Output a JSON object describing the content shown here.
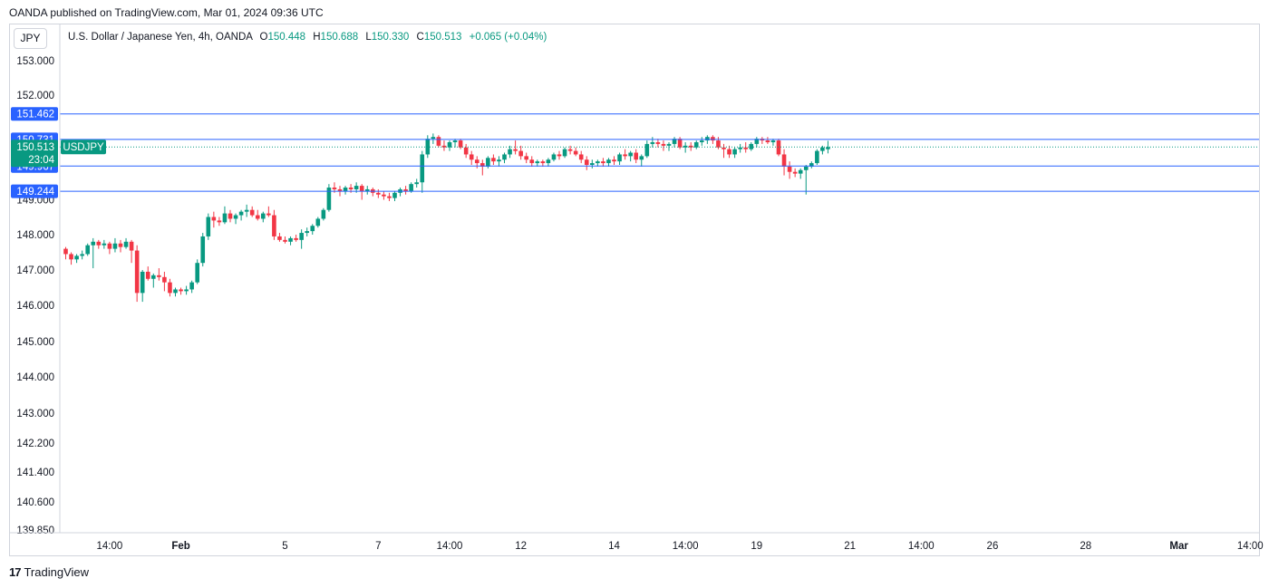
{
  "header": {
    "published": "OANDA published on TradingView.com, Mar 01, 2024 09:36 UTC",
    "currency": "JPY",
    "symbol_desc": "U.S. Dollar / Japanese Yen, 4h, OANDA",
    "o_label": "O",
    "o_value": "150.448",
    "h_label": "H",
    "h_value": "150.688",
    "l_label": "L",
    "l_value": "150.330",
    "c_label": "C",
    "c_value": "150.513",
    "change": "+0.065 (+0.04%)"
  },
  "footer": {
    "brand": "TradingView",
    "logo": "17"
  },
  "colors": {
    "up": "#089981",
    "down": "#f23645",
    "hline": "#2962ff",
    "label_blue": "#2962ff",
    "label_green": "#089981",
    "grid": "#f0f3fa"
  },
  "chart_data": {
    "type": "candlestick",
    "symbol": "USDJPY",
    "y_ticks": [
      {
        "v": 153.0,
        "t": "153.000"
      },
      {
        "v": 152.0,
        "t": "152.000"
      },
      {
        "v": 149.0,
        "t": "149.000"
      },
      {
        "v": 148.0,
        "t": "148.000"
      },
      {
        "v": 147.0,
        "t": "147.000"
      },
      {
        "v": 146.0,
        "t": "146.000"
      },
      {
        "v": 145.0,
        "t": "145.000"
      },
      {
        "v": 144.0,
        "t": "144.000"
      },
      {
        "v": 143.0,
        "t": "143.000"
      },
      {
        "v": 142.2,
        "t": "142.200"
      },
      {
        "v": 141.4,
        "t": "141.400"
      },
      {
        "v": 140.6,
        "t": "140.600"
      },
      {
        "v": 139.85,
        "t": "139.850"
      }
    ],
    "x_ticks": [
      {
        "i": 8,
        "t": "14:00"
      },
      {
        "i": 21,
        "t": "Feb"
      },
      {
        "i": 40,
        "t": "5"
      },
      {
        "i": 57,
        "t": "7"
      },
      {
        "i": 70,
        "t": "14:00"
      },
      {
        "i": 83,
        "t": "12"
      },
      {
        "i": 100,
        "t": "14"
      },
      {
        "i": 113,
        "t": "14:00"
      },
      {
        "i": 126,
        "t": "19"
      },
      {
        "i": 143,
        "t": "21"
      },
      {
        "i": 156,
        "t": "14:00"
      },
      {
        "i": 169,
        "t": "26"
      },
      {
        "i": 186,
        "t": "28"
      },
      {
        "i": 203,
        "t": "Mar"
      },
      {
        "i": 216,
        "t": "14:00"
      }
    ],
    "horizontal_lines": [
      {
        "price": 151.462,
        "label": "151.462"
      },
      {
        "price": 150.731,
        "label": "150.731"
      },
      {
        "price": 149.967,
        "label": "149.967"
      },
      {
        "price": 149.244,
        "label": "149.244"
      }
    ],
    "last_price": {
      "price": 150.513,
      "label": "150.513",
      "countdown": "23:04",
      "symbol_tag": "USDJPY"
    },
    "candles": [
      [
        147.6,
        147.65,
        147.3,
        147.45
      ],
      [
        147.45,
        147.5,
        147.15,
        147.3
      ],
      [
        147.3,
        147.45,
        147.2,
        147.4
      ],
      [
        147.4,
        147.55,
        147.3,
        147.45
      ],
      [
        147.45,
        147.75,
        147.4,
        147.7
      ],
      [
        147.7,
        147.9,
        147.05,
        147.8
      ],
      [
        147.8,
        147.85,
        147.6,
        147.7
      ],
      [
        147.7,
        147.85,
        147.6,
        147.75
      ],
      [
        147.75,
        147.8,
        147.45,
        147.6
      ],
      [
        147.6,
        147.9,
        147.5,
        147.75
      ],
      [
        147.75,
        147.85,
        147.5,
        147.65
      ],
      [
        147.65,
        147.9,
        147.6,
        147.8
      ],
      [
        147.8,
        147.85,
        147.2,
        147.55
      ],
      [
        147.55,
        147.7,
        146.1,
        146.35
      ],
      [
        146.35,
        147.0,
        146.1,
        146.95
      ],
      [
        146.95,
        147.1,
        146.7,
        146.75
      ],
      [
        146.75,
        146.9,
        146.5,
        146.85
      ],
      [
        146.85,
        147.05,
        146.7,
        146.8
      ],
      [
        146.8,
        146.95,
        146.4,
        146.65
      ],
      [
        146.65,
        146.75,
        146.25,
        146.35
      ],
      [
        146.35,
        146.5,
        146.25,
        146.45
      ],
      [
        146.45,
        146.5,
        146.3,
        146.4
      ],
      [
        146.4,
        146.55,
        146.3,
        146.45
      ],
      [
        146.45,
        146.7,
        146.35,
        146.65
      ],
      [
        146.65,
        147.3,
        146.6,
        147.2
      ],
      [
        147.2,
        148.05,
        147.1,
        147.95
      ],
      [
        147.95,
        148.6,
        147.85,
        148.5
      ],
      [
        148.5,
        148.65,
        148.2,
        148.4
      ],
      [
        148.4,
        148.5,
        148.25,
        148.35
      ],
      [
        148.35,
        148.8,
        148.3,
        148.6
      ],
      [
        148.6,
        148.7,
        148.35,
        148.45
      ],
      [
        148.45,
        148.6,
        148.3,
        148.55
      ],
      [
        148.55,
        148.7,
        148.4,
        148.65
      ],
      [
        148.65,
        148.85,
        148.5,
        148.7
      ],
      [
        148.7,
        148.8,
        148.5,
        148.55
      ],
      [
        148.55,
        148.7,
        148.4,
        148.45
      ],
      [
        148.45,
        148.65,
        148.35,
        148.6
      ],
      [
        148.6,
        148.8,
        148.5,
        148.55
      ],
      [
        148.55,
        148.7,
        147.85,
        147.95
      ],
      [
        147.95,
        148.05,
        147.8,
        147.85
      ],
      [
        147.85,
        147.95,
        147.75,
        147.8
      ],
      [
        147.8,
        147.95,
        147.7,
        147.9
      ],
      [
        147.9,
        148.0,
        147.8,
        147.85
      ],
      [
        147.85,
        148.15,
        147.6,
        148.05
      ],
      [
        148.05,
        148.2,
        147.95,
        148.1
      ],
      [
        148.1,
        148.3,
        148.0,
        148.25
      ],
      [
        148.25,
        148.5,
        148.2,
        148.45
      ],
      [
        148.45,
        148.75,
        148.4,
        148.7
      ],
      [
        148.7,
        149.45,
        148.65,
        149.35
      ],
      [
        149.35,
        149.5,
        149.2,
        149.3
      ],
      [
        149.3,
        149.4,
        149.1,
        149.25
      ],
      [
        149.25,
        149.4,
        149.15,
        149.35
      ],
      [
        149.35,
        149.45,
        149.2,
        149.3
      ],
      [
        149.3,
        149.5,
        149.2,
        149.4
      ],
      [
        149.4,
        149.45,
        149.0,
        149.25
      ],
      [
        149.25,
        149.4,
        149.15,
        149.3
      ],
      [
        149.3,
        149.35,
        149.1,
        149.2
      ],
      [
        149.2,
        149.3,
        149.05,
        149.15
      ],
      [
        149.15,
        149.25,
        149.0,
        149.1
      ],
      [
        149.1,
        149.2,
        148.95,
        149.05
      ],
      [
        149.05,
        149.25,
        148.95,
        149.2
      ],
      [
        149.2,
        149.35,
        149.1,
        149.3
      ],
      [
        149.3,
        149.4,
        149.15,
        149.25
      ],
      [
        149.25,
        149.5,
        149.2,
        149.45
      ],
      [
        149.45,
        149.6,
        149.35,
        149.5
      ],
      [
        149.5,
        150.4,
        149.2,
        150.3
      ],
      [
        150.3,
        150.85,
        150.2,
        150.75
      ],
      [
        150.75,
        150.9,
        150.6,
        150.8
      ],
      [
        150.8,
        150.85,
        150.5,
        150.55
      ],
      [
        150.55,
        150.7,
        150.4,
        150.5
      ],
      [
        150.5,
        150.7,
        150.4,
        150.65
      ],
      [
        150.65,
        150.75,
        150.5,
        150.7
      ],
      [
        150.7,
        150.75,
        150.45,
        150.5
      ],
      [
        150.5,
        150.6,
        150.2,
        150.3
      ],
      [
        150.3,
        150.4,
        150.0,
        150.15
      ],
      [
        150.15,
        150.25,
        149.9,
        150.05
      ],
      [
        150.05,
        150.15,
        149.7,
        149.95
      ],
      [
        149.95,
        150.25,
        149.9,
        150.2
      ],
      [
        150.2,
        150.3,
        150.0,
        150.1
      ],
      [
        150.1,
        150.25,
        149.95,
        150.15
      ],
      [
        150.15,
        150.35,
        150.05,
        150.3
      ],
      [
        150.3,
        150.55,
        150.2,
        150.45
      ],
      [
        150.45,
        150.7,
        150.3,
        150.4
      ],
      [
        150.4,
        150.55,
        150.15,
        150.25
      ],
      [
        150.25,
        150.35,
        150.05,
        150.15
      ],
      [
        150.15,
        150.25,
        149.95,
        150.05
      ],
      [
        150.05,
        150.15,
        149.95,
        150.1
      ],
      [
        150.1,
        150.15,
        149.95,
        150.05
      ],
      [
        150.05,
        150.2,
        149.95,
        150.15
      ],
      [
        150.15,
        150.35,
        150.1,
        150.3
      ],
      [
        150.3,
        150.4,
        150.15,
        150.25
      ],
      [
        150.25,
        150.5,
        150.2,
        150.45
      ],
      [
        150.45,
        150.55,
        150.3,
        150.4
      ],
      [
        150.4,
        150.5,
        150.25,
        150.3
      ],
      [
        150.3,
        150.4,
        150.05,
        150.15
      ],
      [
        150.15,
        150.25,
        149.85,
        150.0
      ],
      [
        150.0,
        150.15,
        149.9,
        150.05
      ],
      [
        150.05,
        150.15,
        149.95,
        150.1
      ],
      [
        150.1,
        150.2,
        149.95,
        150.05
      ],
      [
        150.05,
        150.2,
        149.95,
        150.15
      ],
      [
        150.15,
        150.25,
        150.0,
        150.1
      ],
      [
        150.1,
        150.35,
        150.0,
        150.3
      ],
      [
        150.3,
        150.45,
        150.15,
        150.25
      ],
      [
        150.25,
        150.4,
        150.1,
        150.35
      ],
      [
        150.35,
        150.45,
        150.05,
        150.15
      ],
      [
        150.15,
        150.3,
        149.95,
        150.25
      ],
      [
        150.25,
        150.7,
        150.2,
        150.6
      ],
      [
        150.6,
        150.8,
        150.5,
        150.65
      ],
      [
        150.65,
        150.75,
        150.5,
        150.6
      ],
      [
        150.6,
        150.7,
        150.4,
        150.55
      ],
      [
        150.55,
        150.65,
        150.4,
        150.6
      ],
      [
        150.6,
        150.8,
        150.5,
        150.75
      ],
      [
        150.75,
        150.8,
        150.45,
        150.5
      ],
      [
        150.5,
        150.65,
        150.35,
        150.55
      ],
      [
        150.55,
        150.65,
        150.4,
        150.5
      ],
      [
        150.5,
        150.7,
        150.45,
        150.65
      ],
      [
        150.65,
        150.8,
        150.55,
        150.7
      ],
      [
        150.7,
        150.85,
        150.6,
        150.8
      ],
      [
        150.8,
        150.85,
        150.6,
        150.7
      ],
      [
        150.7,
        150.8,
        150.45,
        150.5
      ],
      [
        150.5,
        150.6,
        150.2,
        150.45
      ],
      [
        150.45,
        150.55,
        150.2,
        150.3
      ],
      [
        150.3,
        150.5,
        150.2,
        150.45
      ],
      [
        150.45,
        150.6,
        150.35,
        150.5
      ],
      [
        150.5,
        150.65,
        150.35,
        150.45
      ],
      [
        150.45,
        150.65,
        150.4,
        150.6
      ],
      [
        150.6,
        150.8,
        150.5,
        150.75
      ],
      [
        150.75,
        150.8,
        150.6,
        150.7
      ],
      [
        150.7,
        150.8,
        150.6,
        150.65
      ],
      [
        150.65,
        150.75,
        150.55,
        150.7
      ],
      [
        150.7,
        150.75,
        150.25,
        150.3
      ],
      [
        150.3,
        150.45,
        149.7,
        149.95
      ],
      [
        149.95,
        150.1,
        149.6,
        149.8
      ],
      [
        149.8,
        149.9,
        149.65,
        149.75
      ],
      [
        149.75,
        149.9,
        149.6,
        149.85
      ],
      [
        149.85,
        150.0,
        149.15,
        149.95
      ],
      [
        149.95,
        150.1,
        149.9,
        150.05
      ],
      [
        150.05,
        150.45,
        150.0,
        150.4
      ],
      [
        150.4,
        150.55,
        150.3,
        150.5
      ],
      [
        150.45,
        150.69,
        150.33,
        150.51
      ]
    ]
  }
}
